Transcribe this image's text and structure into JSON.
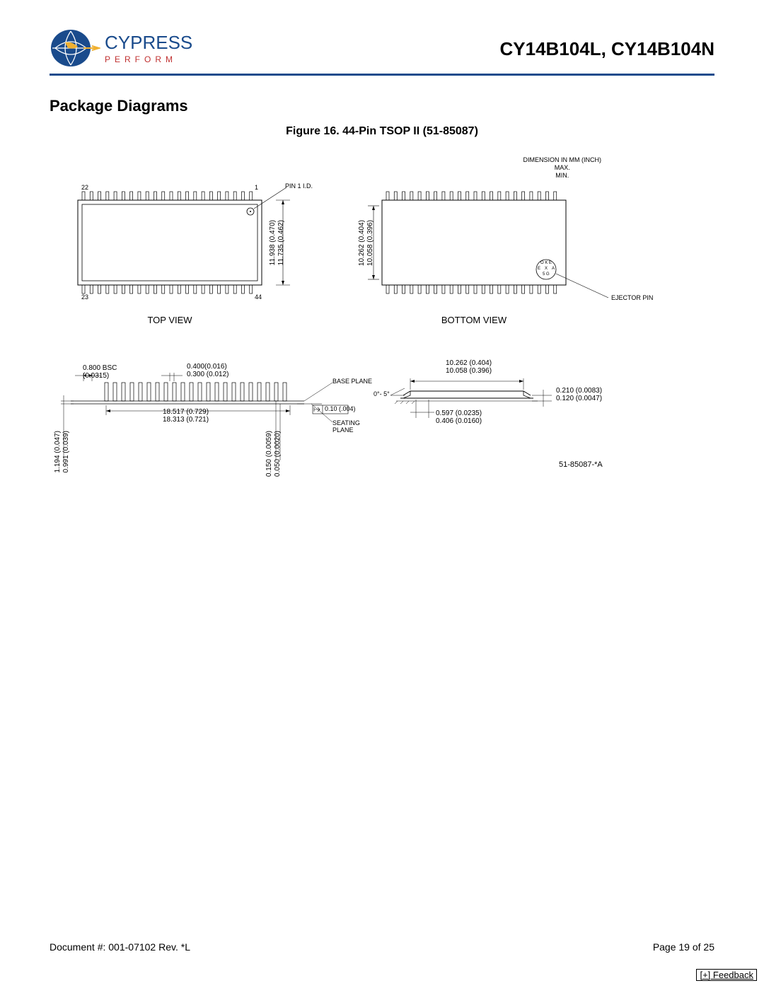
{
  "header": {
    "logo_name": "CYPRESS",
    "logo_tagline": "PERFORM",
    "part_number": "CY14B104L, CY14B104N",
    "logo_colors": {
      "globe": "#1a4b8c",
      "accent": "#f0b030",
      "tagline": "#c03030",
      "name": "#1a4b8c"
    }
  },
  "section_title": "Package Diagrams",
  "figure_title": "Figure 16.  44-Pin TSOP II (51-85087)",
  "dimension_note": {
    "line1": "DIMENSION IN MM (INCH)",
    "line2": "MAX.",
    "line3": "MIN."
  },
  "top_view": {
    "label": "TOP VIEW",
    "pin1_label": "PIN 1 I.D.",
    "pin_tl": "22",
    "pin_tr": "1",
    "pin_bl": "23",
    "pin_br": "44",
    "height_max": "11.938 (0.470)",
    "height_min": "11.735 (0.462)",
    "pins_per_side": 22
  },
  "bottom_view": {
    "label": "BOTTOM VIEW",
    "height_max": "10.262 (0.404)",
    "height_min": "10.058 (0.396)",
    "ejector_label": "EJECTOR PIN",
    "ejector_code": {
      "top": "O K E",
      "mid": "X",
      "left": "E",
      "right": "A",
      "bot": "5 G"
    },
    "pins_per_side": 22
  },
  "side_view": {
    "pitch": {
      "l1": "0.800 BSC",
      "l2": "(0.0315)"
    },
    "lead_width": {
      "max": "0.400(0.016)",
      "min": "0.300 (0.012)"
    },
    "body_length": {
      "max": "18.517 (0.729)",
      "min": "18.313 (0.721)"
    },
    "base_plane": "BASE PLANE",
    "seating_plane": "SEATING\nPLANE",
    "coplanarity": "0.10 (.004)",
    "height_left": {
      "max": "1.194 (0.047)",
      "min": "0.991 (0.039)"
    },
    "lead_thick": {
      "max": "0.150 (0.0059)",
      "min": "0.050 (0.0020)"
    },
    "pins_per_side": 22
  },
  "profile_view": {
    "width": {
      "max": "10.262 (0.404)",
      "min": "10.058 (0.396)"
    },
    "angle": "0°- 5°",
    "foot": {
      "max": "0.597 (0.0235)",
      "min": "0.406 (0.0160)"
    },
    "standoff": {
      "max": "0.210 (0.0083)",
      "min": "0.120 (0.0047)"
    }
  },
  "revision_code": "51-85087-*A",
  "footer": {
    "doc": "Document #: 001-07102 Rev. *L",
    "page": "Page 19 of 25"
  },
  "feedback": "[+] Feedback",
  "colors": {
    "text": "#000000",
    "rule": "#1a4b8c",
    "line": "#000000",
    "bg": "#ffffff"
  }
}
